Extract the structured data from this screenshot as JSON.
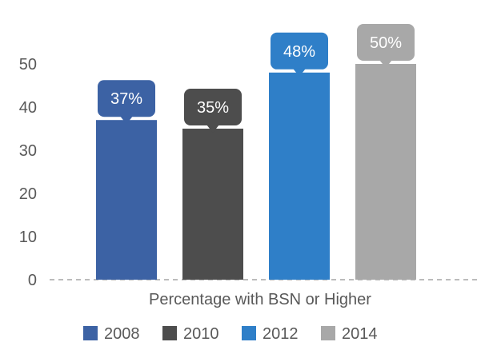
{
  "chart_data": {
    "type": "bar",
    "categories": [
      "Percentage with BSN or Higher"
    ],
    "series": [
      {
        "name": "2008",
        "values": [
          37
        ],
        "label": "37%",
        "color": "#3c62a4"
      },
      {
        "name": "2010",
        "values": [
          35
        ],
        "label": "35%",
        "color": "#4d4d4d"
      },
      {
        "name": "2012",
        "values": [
          48
        ],
        "label": "48%",
        "color": "#2f7fc8"
      },
      {
        "name": "2014",
        "values": [
          50
        ],
        "label": "50%",
        "color": "#a8a8a8"
      }
    ],
    "yticks": [
      "0",
      "10",
      "20",
      "30",
      "40",
      "50"
    ],
    "ylim": [
      0,
      50
    ],
    "grid": false,
    "legend": "bottom",
    "xlabel": "",
    "ylabel": ""
  }
}
